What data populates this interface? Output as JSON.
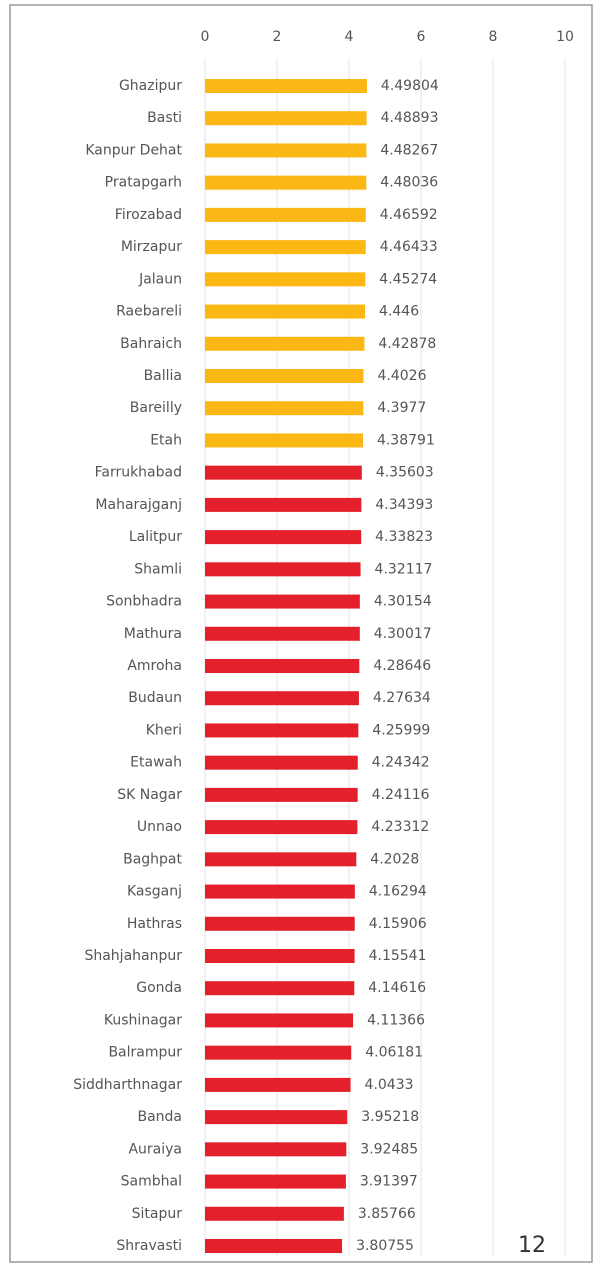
{
  "chart_data": {
    "type": "bar",
    "orientation": "horizontal",
    "categories": [
      "Ghazipur",
      "Basti",
      "Kanpur Dehat",
      "Pratapgarh",
      "Firozabad",
      "Mirzapur",
      "Jalaun",
      "Raebareli",
      "Bahraich",
      "Ballia",
      "Bareilly",
      "Etah",
      "Farrukhabad",
      "Maharajganj",
      "Lalitpur",
      "Shamli",
      "Sonbhadra",
      "Mathura",
      "Amroha",
      "Budaun",
      "Kheri",
      "Etawah",
      "SK Nagar",
      "Unnao",
      "Baghpat",
      "Kasganj",
      "Hathras",
      "Shahjahanpur",
      "Gonda",
      "Kushinagar",
      "Balrampur",
      "Siddharthnagar",
      "Banda",
      "Auraiya",
      "Sambhal",
      "Sitapur",
      "Shravasti"
    ],
    "values": [
      4.49804,
      4.48893,
      4.48267,
      4.48036,
      4.46592,
      4.46433,
      4.45274,
      4.446,
      4.42878,
      4.4026,
      4.3977,
      4.38791,
      4.35603,
      4.34393,
      4.33823,
      4.32117,
      4.30154,
      4.30017,
      4.28646,
      4.27634,
      4.25999,
      4.24342,
      4.24116,
      4.23312,
      4.2028,
      4.16294,
      4.15906,
      4.15541,
      4.14616,
      4.11366,
      4.06181,
      4.0433,
      3.95218,
      3.92485,
      3.91397,
      3.85766,
      3.80755
    ],
    "colors": [
      "#fbb714",
      "#fbb714",
      "#fbb714",
      "#fbb714",
      "#fbb714",
      "#fbb714",
      "#fbb714",
      "#fbb714",
      "#fbb714",
      "#fbb714",
      "#fbb714",
      "#fbb714",
      "#e3202b",
      "#e3202b",
      "#e3202b",
      "#e3202b",
      "#e3202b",
      "#e3202b",
      "#e3202b",
      "#e3202b",
      "#e3202b",
      "#e3202b",
      "#e3202b",
      "#e3202b",
      "#e3202b",
      "#e3202b",
      "#e3202b",
      "#e3202b",
      "#e3202b",
      "#e3202b",
      "#e3202b",
      "#e3202b",
      "#e3202b",
      "#e3202b",
      "#e3202b",
      "#e3202b",
      "#e3202b"
    ],
    "xlim": [
      0,
      10
    ],
    "xticks": [
      0,
      2,
      4,
      6,
      8,
      10
    ],
    "grid": true,
    "annotation": "12"
  }
}
